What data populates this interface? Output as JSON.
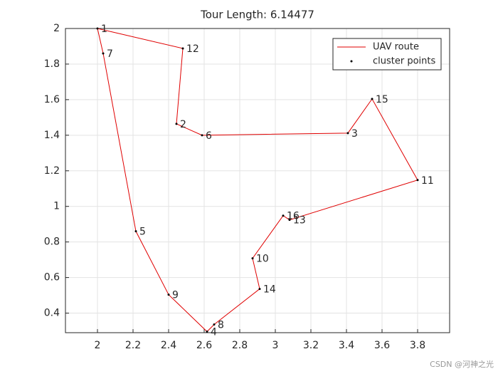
{
  "chart_data": {
    "type": "route",
    "title": "Tour Length: 6.14477",
    "xlim": [
      1.82,
      3.98
    ],
    "ylim": [
      0.29,
      2
    ],
    "xticks": [
      2,
      2.2,
      2.4,
      2.6,
      2.8,
      3,
      3.2,
      3.4,
      3.6,
      3.8
    ],
    "yticks": [
      0.4,
      0.6,
      0.8,
      1,
      1.2,
      1.4,
      1.6,
      1.8,
      2
    ],
    "grid": true,
    "legend": "northeast",
    "series": [
      {
        "name": "UAV route",
        "color": "#e00000",
        "x": [
          2.0,
          2.48,
          2.444,
          2.588,
          3.408,
          3.544,
          3.8,
          3.08,
          3.044,
          2.872,
          2.912,
          2.656,
          2.616,
          2.4,
          2.216,
          2.032,
          2.0
        ],
        "y": [
          2.0,
          1.888,
          1.464,
          1.4,
          1.412,
          1.604,
          1.148,
          0.924,
          0.948,
          0.708,
          0.536,
          0.336,
          0.296,
          0.504,
          0.86,
          1.86,
          2.0
        ]
      },
      {
        "name": "cluster points",
        "color": "#000000",
        "labels": [
          "1",
          "2",
          "3",
          "4",
          "5",
          "6",
          "7",
          "8",
          "9",
          "10",
          "11",
          "12",
          "13",
          "14",
          "15",
          "16"
        ],
        "x": [
          2.0,
          2.444,
          3.408,
          2.616,
          2.216,
          2.588,
          2.032,
          2.656,
          2.4,
          2.872,
          3.8,
          2.48,
          3.08,
          2.912,
          3.544,
          3.044
        ],
        "y": [
          2.0,
          1.464,
          1.412,
          0.296,
          0.86,
          1.4,
          1.86,
          0.336,
          0.504,
          0.708,
          1.148,
          1.888,
          0.924,
          0.536,
          1.604,
          0.948
        ]
      }
    ],
    "watermark": "CSDN @河神之光"
  }
}
